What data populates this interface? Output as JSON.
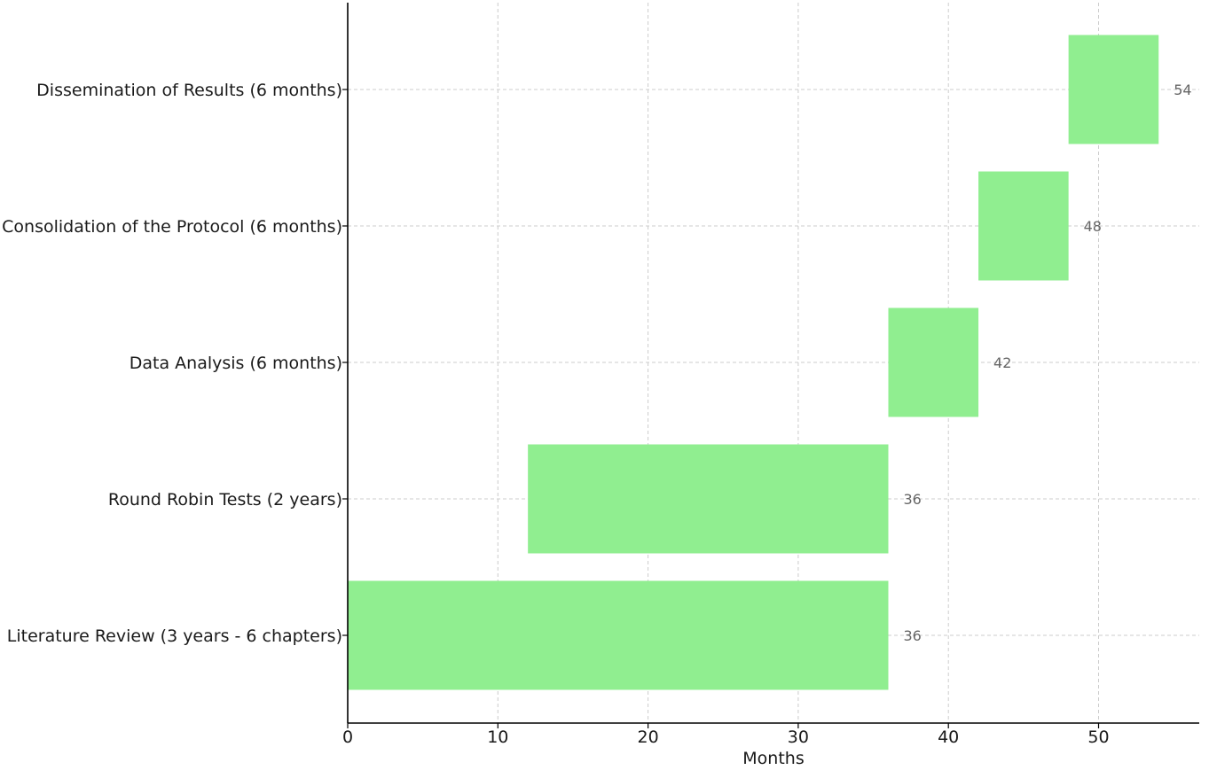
{
  "chart_data": {
    "type": "bar",
    "orientation": "horizontal",
    "title": "",
    "xlabel": "Months",
    "ylabel": "",
    "xlim": [
      0,
      56.7
    ],
    "xticks": [
      "0",
      "10",
      "20",
      "30",
      "40",
      "50"
    ],
    "grid": true,
    "bar_color": "#90ee90",
    "tasks": [
      {
        "label": "Literature Review (3 years - 6 chapters)",
        "start": 0,
        "end": 36,
        "end_label": "36"
      },
      {
        "label": "Round Robin Tests (2 years)",
        "start": 12,
        "end": 36,
        "end_label": "36"
      },
      {
        "label": "Data Analysis (6 months)",
        "start": 36,
        "end": 42,
        "end_label": "42"
      },
      {
        "label": "Consolidation of the Protocol (6 months)",
        "start": 42,
        "end": 48,
        "end_label": "48"
      },
      {
        "label": "Dissemination of Results (6 months)",
        "start": 48,
        "end": 54,
        "end_label": "54"
      }
    ]
  }
}
